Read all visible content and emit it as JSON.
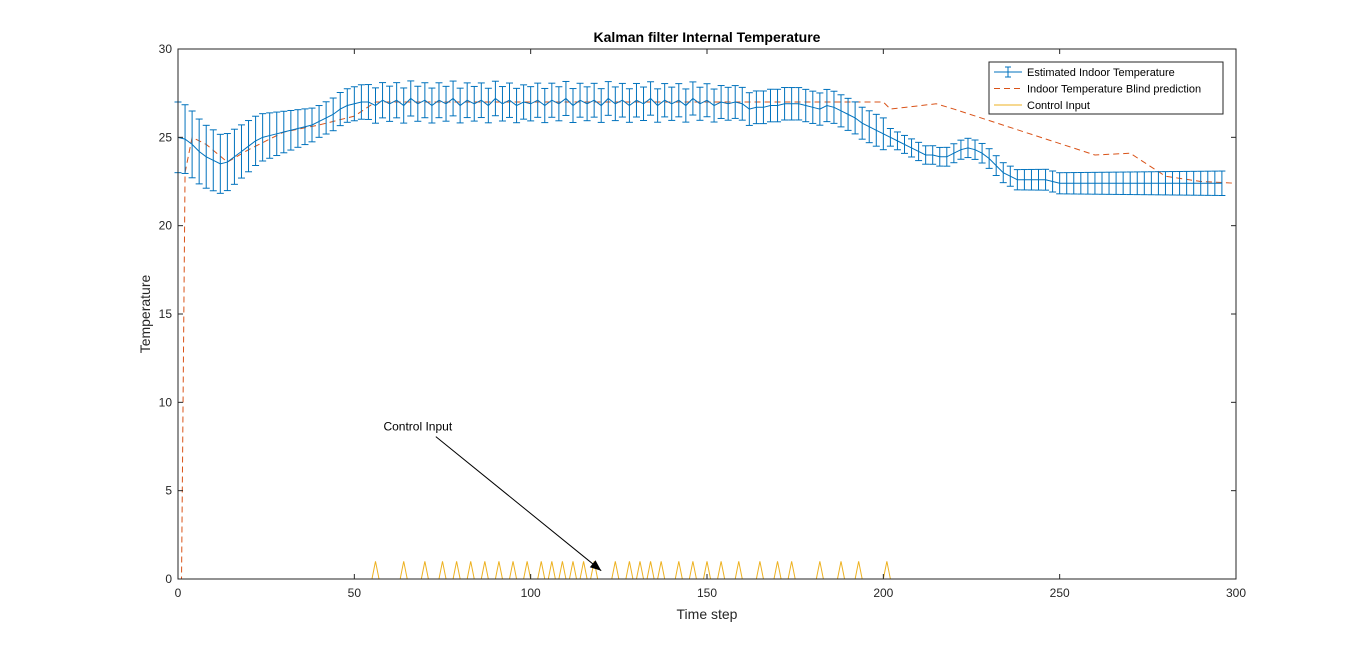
{
  "chart_data": {
    "type": "line",
    "title": "Kalman filter Internal Temperature",
    "xlabel": "Time step",
    "ylabel": "Temperature",
    "xlim": [
      0,
      300
    ],
    "ylim": [
      0,
      30
    ],
    "xticks": [
      0,
      50,
      100,
      150,
      200,
      250,
      300
    ],
    "yticks": [
      0,
      5,
      10,
      15,
      20,
      25,
      30
    ],
    "grid": false,
    "legend_location": "top-right",
    "series": [
      {
        "name": "Estimated Indoor Temperature",
        "style": "line-with-errorbars",
        "color": "#0072bd",
        "x_start": 0,
        "x_step": 2,
        "values": [
          25.0,
          24.9,
          24.6,
          24.2,
          23.9,
          23.7,
          23.5,
          23.6,
          23.9,
          24.2,
          24.5,
          24.8,
          25.0,
          25.1,
          25.2,
          25.3,
          25.4,
          25.5,
          25.6,
          25.7,
          25.9,
          26.1,
          26.3,
          26.6,
          26.8,
          26.9,
          27.0,
          27.0,
          26.8,
          27.1,
          26.9,
          27.1,
          26.8,
          27.2,
          26.9,
          27.1,
          26.8,
          27.1,
          26.9,
          27.2,
          26.8,
          27.1,
          26.9,
          27.1,
          26.8,
          27.2,
          26.9,
          27.1,
          26.8,
          27.0,
          26.9,
          27.1,
          26.8,
          27.1,
          26.9,
          27.2,
          26.8,
          27.1,
          26.9,
          27.1,
          26.8,
          27.2,
          26.9,
          27.1,
          26.8,
          27.1,
          26.9,
          27.2,
          26.8,
          27.1,
          26.9,
          27.1,
          26.8,
          27.2,
          26.9,
          27.1,
          26.8,
          27.0,
          26.9,
          27.0,
          26.9,
          26.6,
          26.7,
          26.7,
          26.8,
          26.8,
          26.9,
          26.9,
          26.9,
          26.8,
          26.7,
          26.6,
          26.8,
          26.7,
          26.5,
          26.3,
          26.1,
          25.8,
          25.6,
          25.4,
          25.2,
          25.0,
          24.8,
          24.6,
          24.4,
          24.2,
          24.0,
          24.0,
          23.9,
          23.9,
          24.1,
          24.3,
          24.4,
          24.3,
          24.1,
          23.8,
          23.4,
          23.0,
          22.8,
          22.6,
          22.6,
          22.6,
          22.6,
          22.6,
          22.5,
          22.4,
          22.4,
          22.4,
          22.4,
          22.4,
          22.4,
          22.4,
          22.4,
          22.4,
          22.4,
          22.4,
          22.4,
          22.4,
          22.4,
          22.4,
          22.4,
          22.4,
          22.4,
          22.4,
          22.4,
          22.4,
          22.4,
          22.4,
          22.4
        ],
        "errors_x": [
          0,
          40,
          56,
          200,
          202,
          300
        ],
        "errors_y": [
          2.0,
          0.9,
          1.0,
          0.9,
          0.5,
          0.7
        ]
      },
      {
        "name": "Indoor Temperature Blind prediction",
        "style": "dashed",
        "color": "#d95319",
        "x": [
          0,
          1,
          2,
          4,
          8,
          14,
          20,
          30,
          40,
          50,
          56,
          100,
          150,
          200,
          202,
          215,
          220,
          240,
          260,
          270,
          280,
          290,
          300
        ],
        "y": [
          0,
          0,
          23,
          25,
          24.6,
          23.6,
          24.3,
          25.3,
          25.7,
          26.2,
          27.0,
          27.0,
          27.0,
          27.0,
          26.6,
          26.9,
          26.6,
          25.3,
          24.0,
          24.1,
          22.8,
          22.5,
          22.4
        ]
      },
      {
        "name": "Control Input",
        "style": "solid",
        "color": "#edb120",
        "pulse_height": 1,
        "pulse_times": [
          56,
          64,
          70,
          75,
          79,
          83,
          87,
          91,
          95,
          99,
          103,
          106,
          109,
          112,
          115,
          118,
          124,
          128,
          131,
          134,
          137,
          142,
          146,
          150,
          154,
          159,
          165,
          170,
          174,
          182,
          188,
          193,
          201
        ]
      }
    ],
    "annotations": [
      {
        "text": "Control Input",
        "text_x": 68,
        "text_y": 8.4,
        "arrow_to_x": 120,
        "arrow_to_y": 0.3
      }
    ]
  }
}
